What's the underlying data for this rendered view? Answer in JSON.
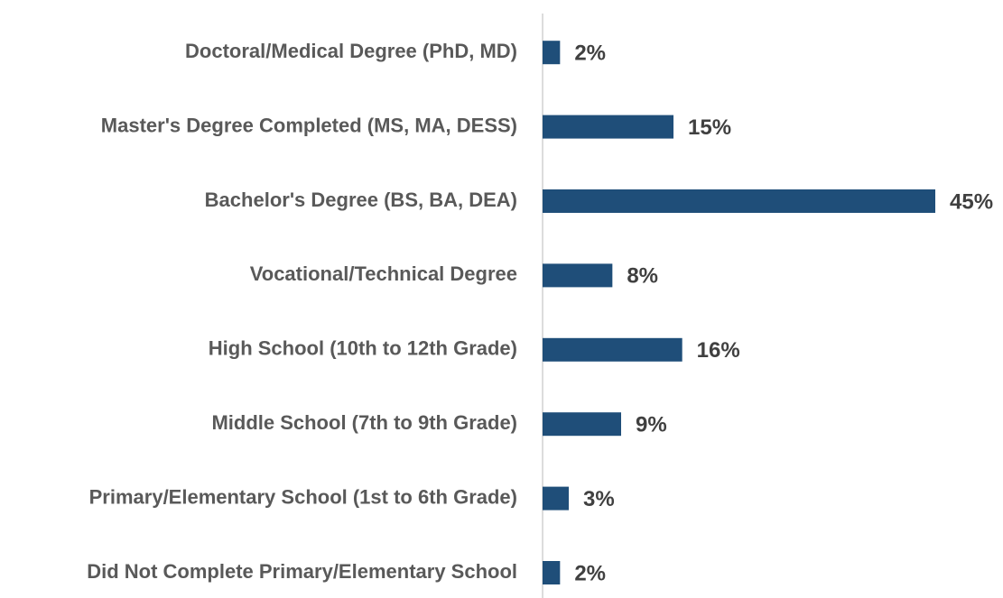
{
  "chart_data": {
    "type": "bar",
    "orientation": "horizontal",
    "categories": [
      "Doctoral/Medical Degree (PhD, MD)",
      "Master's Degree Completed (MS, MA, DESS)",
      "Bachelor's Degree (BS, BA, DEA)",
      "Vocational/Technical Degree",
      "High School (10th to 12th Grade)",
      "Middle School (7th to 9th Grade)",
      "Primary/Elementary School (1st to 6th Grade)",
      "Did Not Complete Primary/Elementary School"
    ],
    "values": [
      2,
      15,
      45,
      8,
      16,
      9,
      3,
      2
    ],
    "value_labels": [
      "2%",
      "15%",
      "45%",
      "8%",
      "16%",
      "9%",
      "3%",
      "2%"
    ],
    "color": "#1f4e79"
  }
}
